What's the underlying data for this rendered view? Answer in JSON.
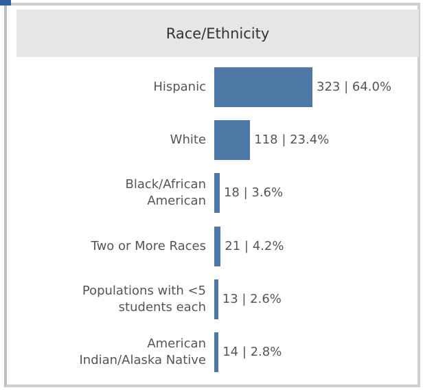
{
  "chart_data": {
    "type": "bar",
    "orientation": "horizontal",
    "title": "Race/Ethnicity",
    "categories": [
      "Hispanic",
      "White",
      "Black/African American",
      "Two or More Races",
      "Populations with <5 students each",
      "American Indian/Alaska Native"
    ],
    "values": [
      323,
      118,
      18,
      21,
      13,
      14
    ],
    "value_labels": [
      "323 | 64.0%",
      "118 | 23.4%",
      "18 | 3.6%",
      "21 | 4.2%",
      "13 | 2.6%",
      "14 | 2.8%"
    ],
    "color": "#4e79a7"
  }
}
